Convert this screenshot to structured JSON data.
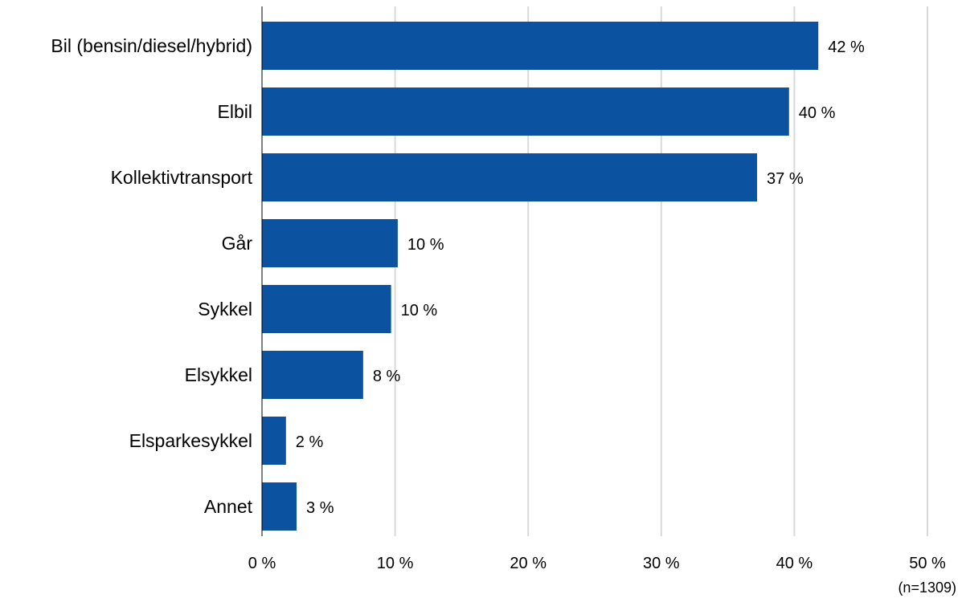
{
  "chart_data": {
    "type": "bar",
    "orientation": "horizontal",
    "title": "",
    "xlabel": "",
    "ylabel": "",
    "xlim": [
      0,
      50
    ],
    "x_ticks": [
      0,
      10,
      20,
      30,
      40,
      50
    ],
    "tick_suffix": " %",
    "grid": true,
    "legend": "none",
    "bar_color": "#0b52a0",
    "categories": [
      "Bil (bensin/diesel/hybrid)",
      "Elbil",
      "Kollektivtransport",
      "Går",
      "Sykkel",
      "Elsykkel",
      "Elsparkesykkel",
      "Annet"
    ],
    "values": [
      41.8,
      39.6,
      37.2,
      10.2,
      9.7,
      7.6,
      1.8,
      2.6
    ],
    "data_labels": [
      "42 %",
      "40 %",
      "37 %",
      "10 %",
      "10 %",
      "8 %",
      "2 %",
      "3 %"
    ],
    "note": "(n=1309)"
  }
}
